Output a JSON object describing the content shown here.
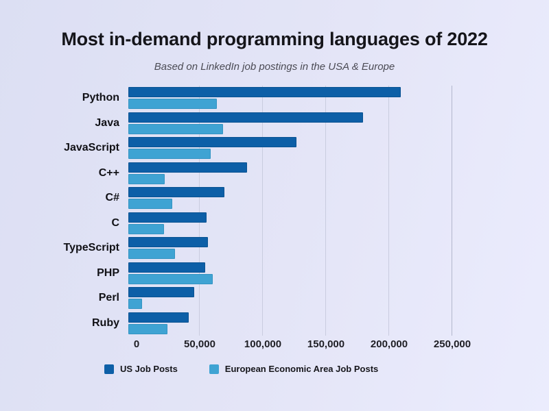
{
  "page": {
    "title": "Most in-demand programming languages of 2022",
    "subtitle": "Based on LinkedIn job postings in the USA & Europe"
  },
  "colors": {
    "background_left": "#dcdff3",
    "background_right": "#ebecfd",
    "us_bar": "#0d5fa7",
    "eea_bar": "#3fa3d3",
    "gridline": "#c9ccdf",
    "title_text": "#15151a",
    "subtitle_text": "#4b4b54"
  },
  "chart_data": {
    "type": "bar",
    "orientation": "horizontal",
    "title": "Most in-demand programming languages of 2022",
    "subtitle": "Based on LinkedIn job postings in the USA & Europe",
    "categories": [
      "Python",
      "Java",
      "JavaScript",
      "C++",
      "C#",
      "C",
      "TypeScript",
      "PHP",
      "Perl",
      "Ruby"
    ],
    "series": [
      {
        "name": "US Job Posts",
        "color": "#0d5fa7",
        "values": [
          216000,
          186000,
          133000,
          94000,
          76000,
          62000,
          63000,
          61000,
          52000,
          48000
        ]
      },
      {
        "name": "European Economic Area Job Posts",
        "color": "#3fa3d3",
        "values": [
          70000,
          75000,
          65000,
          29000,
          35000,
          28000,
          37000,
          67000,
          11000,
          31000
        ]
      }
    ],
    "xlabel": "",
    "ylabel": "",
    "xlim": [
      0,
      250000
    ],
    "xticks": [
      0,
      50000,
      100000,
      150000,
      200000,
      250000
    ],
    "xtick_labels": [
      "0",
      "50,000",
      "100,000",
      "150,000",
      "200,000",
      "250,000"
    ],
    "grid": "vertical",
    "legend_position": "bottom-left"
  }
}
